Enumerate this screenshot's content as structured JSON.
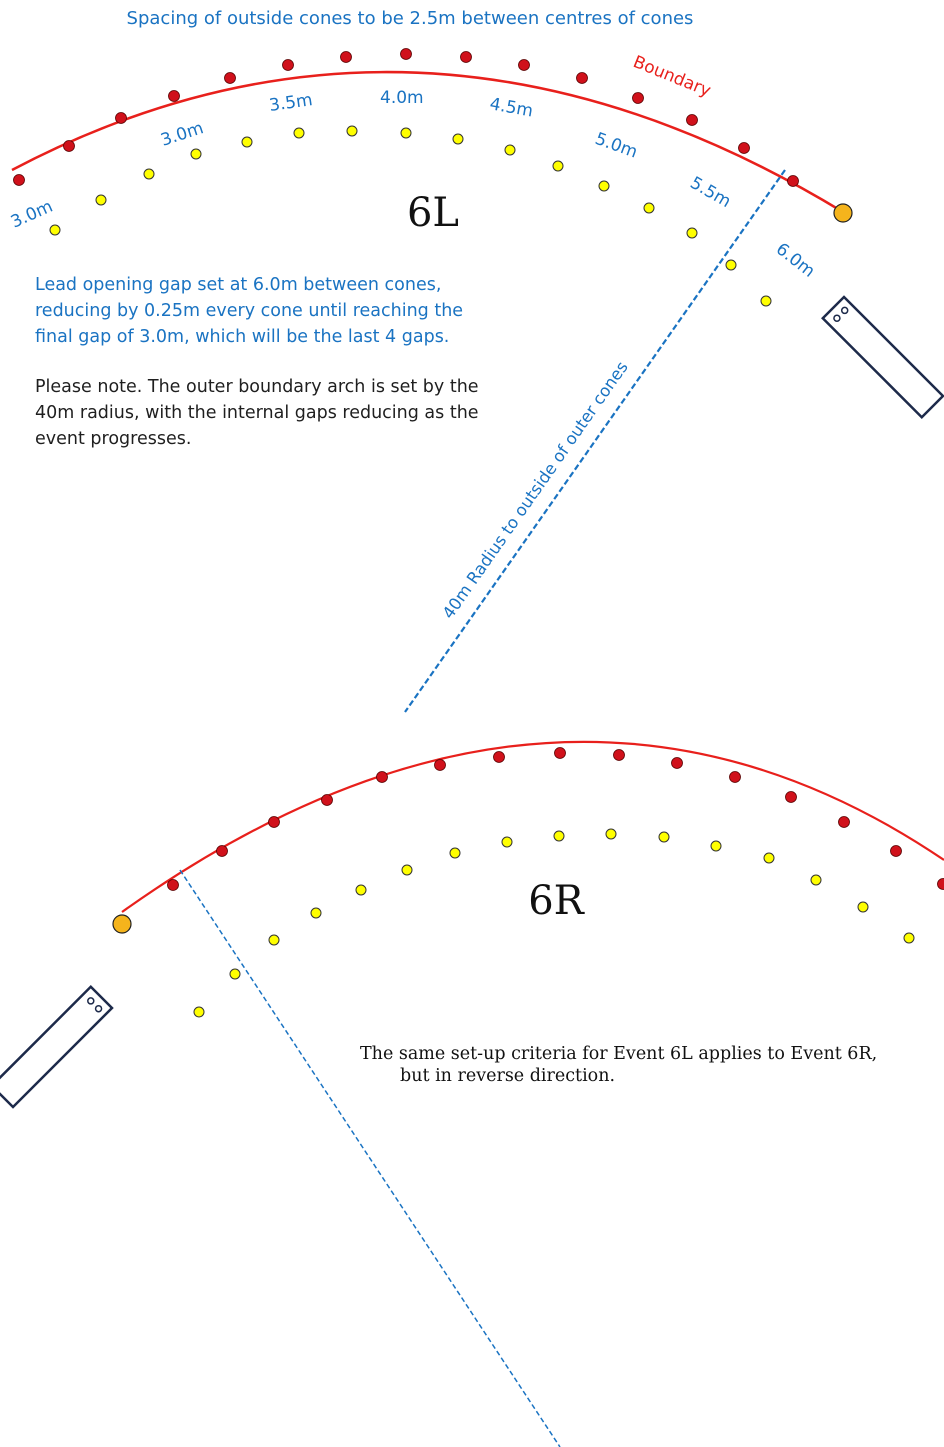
{
  "header": {
    "spacing_note": "Spacing of outside cones to be 2.5m between centres of cones"
  },
  "event_6l": {
    "title": "6L",
    "boundary_label": "Boundary",
    "radius_label": "40m Radius to outside of outer cones",
    "gap_labels": [
      "3.0m",
      "3.0m",
      "3.5m",
      "4.0m",
      "4.5m",
      "5.0m",
      "5.5m",
      "6.0m"
    ],
    "lead_note": [
      "Lead opening gap set at 6.0m between cones,",
      "reducing by 0.25m every cone until reaching the",
      "final gap of 3.0m, which will be the last 4 gaps."
    ],
    "please_note": [
      "Please note. The outer boundary arch is set by the",
      "40m radius, with the internal gaps reducing as the",
      "event progresses."
    ]
  },
  "event_6r": {
    "title": "6R",
    "note": [
      "The same set-up criteria for Event 6L applies to Event 6R,",
      "but in reverse direction."
    ]
  },
  "colors": {
    "boundary": "#e8201c",
    "outer_cone": "#d0111b",
    "inner_cone": "#ffff00",
    "start_cone": "#f5b41c",
    "label_blue": "#1a73c2",
    "radius_line": "#1a73c2",
    "platform_outline": "#1d2a4a"
  },
  "icons": {
    "outer_cone": "red-dot-icon",
    "inner_cone": "yellow-circle-icon",
    "start_cone": "orange-circle-icon",
    "start_platform": "rectangle-platform-icon"
  }
}
